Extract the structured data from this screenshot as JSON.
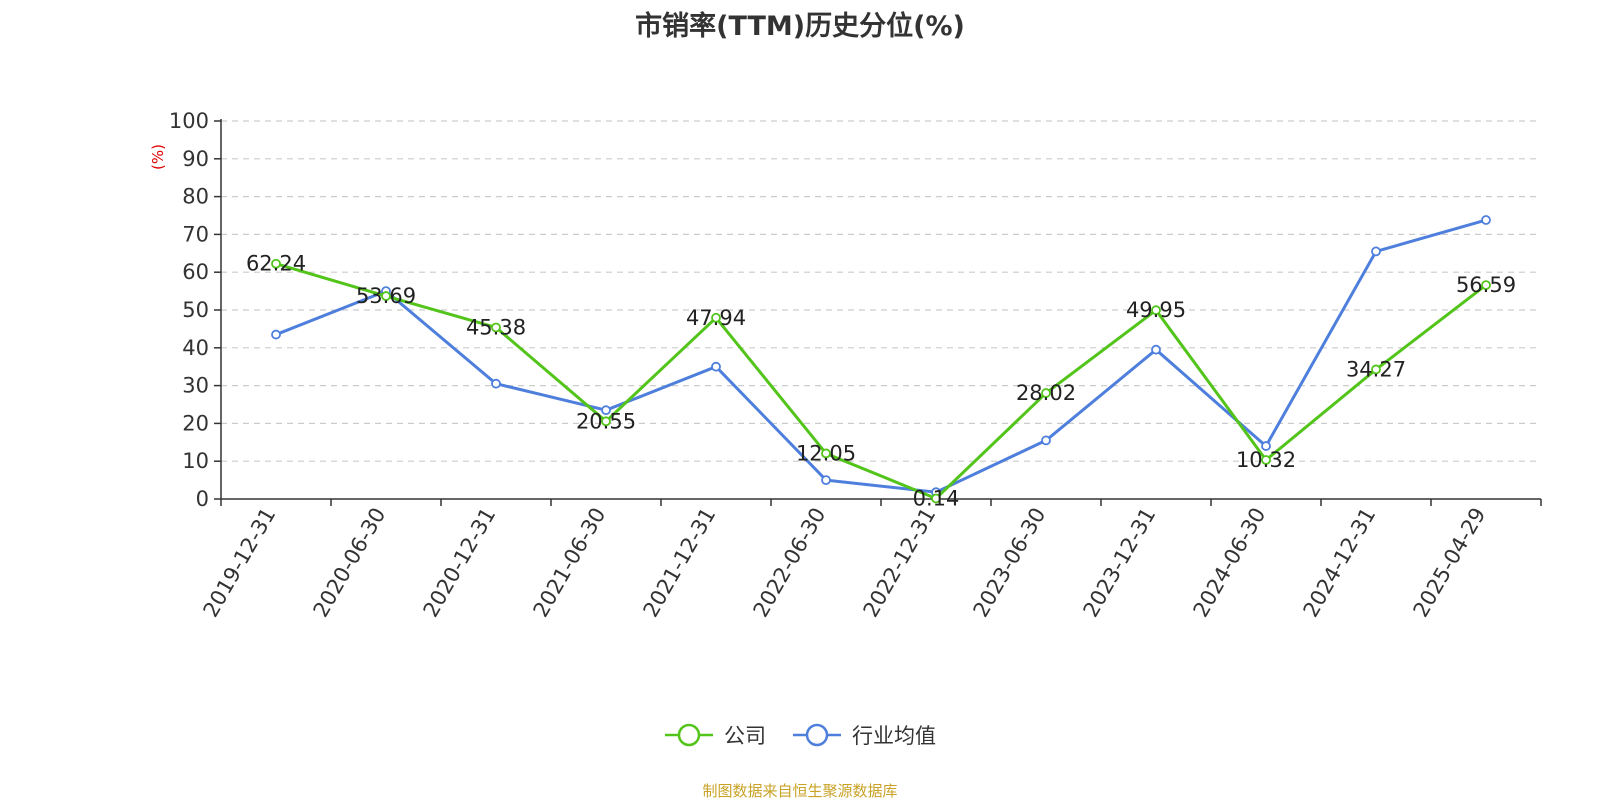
{
  "chart_data": {
    "type": "line",
    "title": "市销率(TTM)历史分位(%)",
    "ylabel": "(%)",
    "ylim": [
      0,
      100
    ],
    "yticks": [
      0,
      10,
      20,
      30,
      40,
      50,
      60,
      70,
      80,
      90,
      100
    ],
    "categories": [
      "2019-12-31",
      "2020-06-30",
      "2020-12-31",
      "2021-06-30",
      "2021-12-31",
      "2022-06-30",
      "2022-12-31",
      "2023-06-30",
      "2023-12-31",
      "2024-06-30",
      "2024-12-31",
      "2025-04-29"
    ],
    "grid": true,
    "legend_position": "bottom",
    "series": [
      {
        "name": "公司",
        "color": "#52c41a",
        "show_labels": true,
        "values": [
          62.24,
          53.69,
          45.38,
          20.55,
          47.94,
          12.05,
          0.14,
          28.02,
          49.95,
          10.32,
          34.27,
          56.59
        ],
        "labels": [
          "62.24",
          "53.69",
          "45.38",
          "20.55",
          "47.94",
          "12.05",
          "0.14",
          "28.02",
          "49.95",
          "10.32",
          "34.27",
          "56.59"
        ]
      },
      {
        "name": "行业均值",
        "color": "#4e7fdc",
        "show_labels": false,
        "values": [
          43.5,
          55.0,
          30.5,
          23.5,
          35.0,
          5.0,
          1.8,
          15.5,
          39.5,
          14.0,
          65.5,
          73.8
        ]
      }
    ]
  },
  "source_note": "制图数据来自恒生聚源数据库"
}
